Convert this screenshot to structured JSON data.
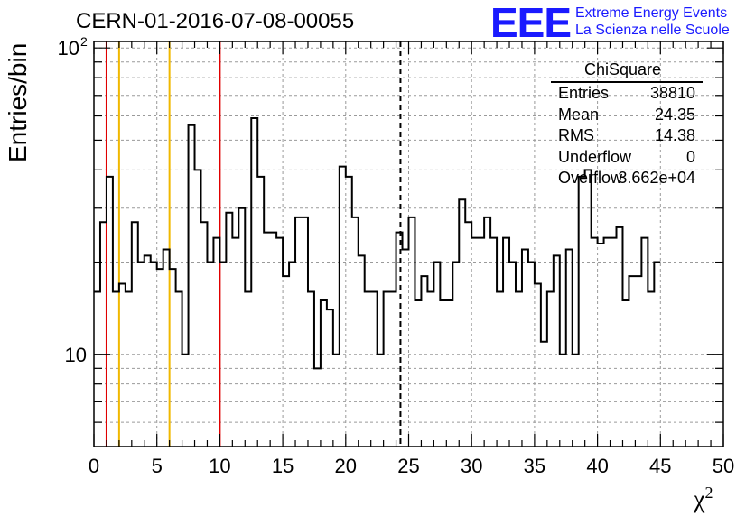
{
  "page": {
    "title": "CERN-01-2016-07-08-00055",
    "logo_text": "EEE",
    "logo_line1": "Extreme Energy Events",
    "logo_line2": "La Scienza nelle Scuole",
    "ylabel": "Entries/bin",
    "xlabel": "χ",
    "xlabel_sup": "2"
  },
  "stats": {
    "title": "ChiSquare",
    "rows": [
      {
        "label": "Entries",
        "value": "38810"
      },
      {
        "label": "Mean",
        "value": "24.35"
      },
      {
        "label": "RMS",
        "value": "14.38"
      },
      {
        "label": "Underflow",
        "value": "0"
      },
      {
        "label": "Overflow",
        "value": "3.662e+04"
      }
    ]
  },
  "chart_data": {
    "type": "histogram",
    "title": "CERN-01-2016-07-08-00055",
    "xlabel": "χ2",
    "ylabel": "Entries/bin",
    "xlim": [
      0,
      50
    ],
    "ylim": [
      5,
      105
    ],
    "yscale": "log",
    "grid": true,
    "bin_width": 0.5,
    "x_ticks": [
      0,
      5,
      10,
      15,
      20,
      25,
      30,
      35,
      40,
      45,
      50
    ],
    "y_tick_labels": [
      {
        "value": 10,
        "label": "10"
      },
      {
        "value": 100,
        "label": "10",
        "sup": "2"
      }
    ],
    "values": [
      16,
      27,
      38,
      16,
      17,
      16,
      27,
      20,
      21,
      20,
      19,
      22,
      19,
      16,
      10,
      56,
      40,
      27,
      20,
      24,
      20,
      29,
      24,
      30,
      16,
      59,
      38,
      25,
      25,
      24,
      18,
      20,
      28,
      28,
      16,
      9,
      15,
      14,
      10,
      41,
      38,
      28,
      21,
      16,
      16,
      10,
      16,
      16,
      25,
      22,
      28,
      15,
      18,
      16,
      20,
      15,
      15,
      20,
      32,
      27,
      24,
      24,
      28,
      24,
      16,
      24,
      20,
      16,
      22,
      20,
      17,
      11,
      16,
      21,
      10,
      22,
      10,
      38,
      40,
      24,
      23,
      24,
      24,
      26,
      15,
      18,
      18,
      24,
      16,
      20
    ],
    "vertical_lines": [
      {
        "x": 1,
        "color": "#e00000"
      },
      {
        "x": 2,
        "color": "#f0b800"
      },
      {
        "x": 6,
        "color": "#f0b800"
      },
      {
        "x": 10,
        "color": "#e00000"
      },
      {
        "x": 24.35,
        "color": "#000000",
        "style": "dashed"
      }
    ]
  }
}
